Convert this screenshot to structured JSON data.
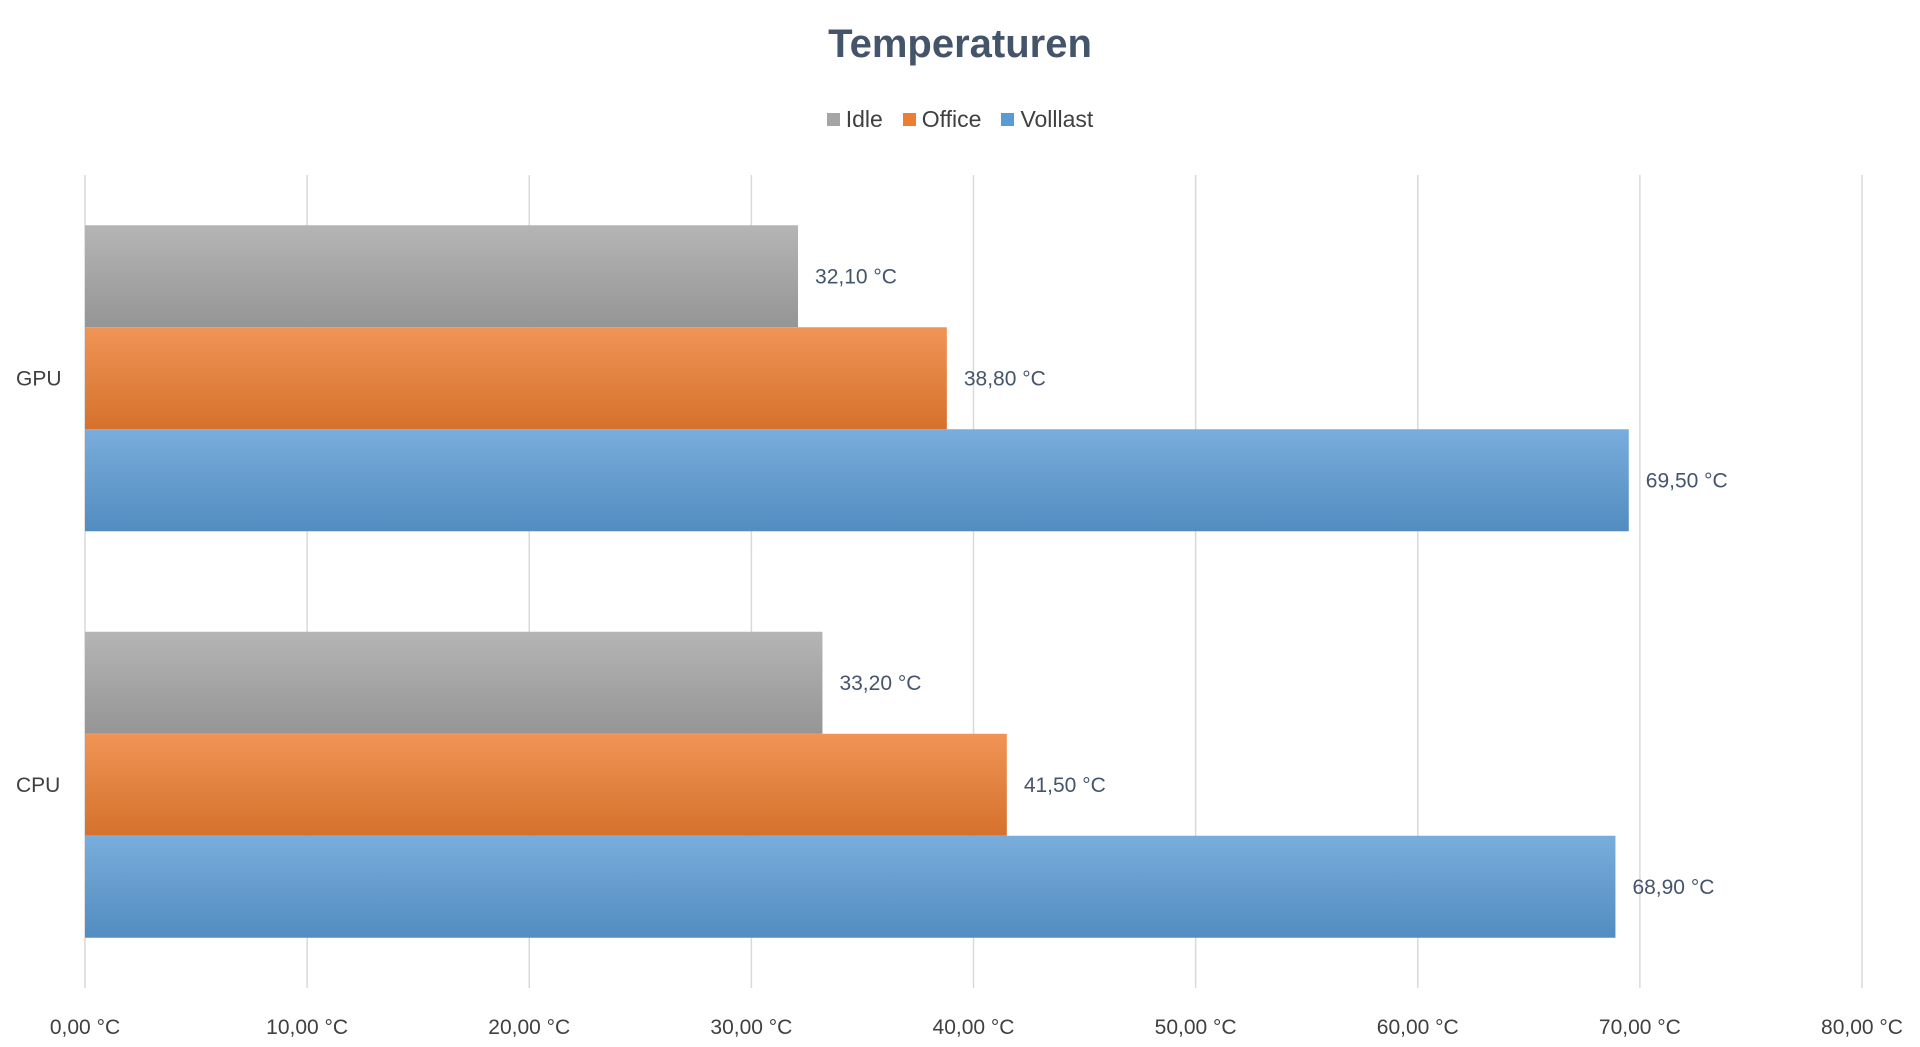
{
  "chart_data": {
    "type": "bar",
    "orientation": "horizontal",
    "title": "Temperaturen",
    "categories": [
      "GPU",
      "CPU"
    ],
    "series": [
      {
        "name": "Idle",
        "color": "#a5a5a5",
        "values": [
          32.1,
          33.2
        ],
        "labels": [
          "32,10 °C",
          "33,20 °C"
        ]
      },
      {
        "name": "Office",
        "color": "#ed7d31",
        "values": [
          38.8,
          41.5
        ],
        "labels": [
          "38,80 °C",
          "41,50 °C"
        ]
      },
      {
        "name": "Volllast",
        "color": "#5b9bd5",
        "values": [
          69.5,
          68.9
        ],
        "labels": [
          "69,50 °C",
          "68,90 °C"
        ]
      }
    ],
    "xlim": [
      0,
      80
    ],
    "xticks": [
      0,
      10,
      20,
      30,
      40,
      50,
      60,
      70,
      80
    ],
    "xtick_labels": [
      "0,00 °C",
      "10,00 °C",
      "20,00 °C",
      "30,00 °C",
      "40,00 °C",
      "50,00 °C",
      "60,00 °C",
      "70,00 °C",
      "80,00 °C"
    ],
    "xlabel": "",
    "ylabel": "",
    "grid": true,
    "legend_position": "top"
  }
}
